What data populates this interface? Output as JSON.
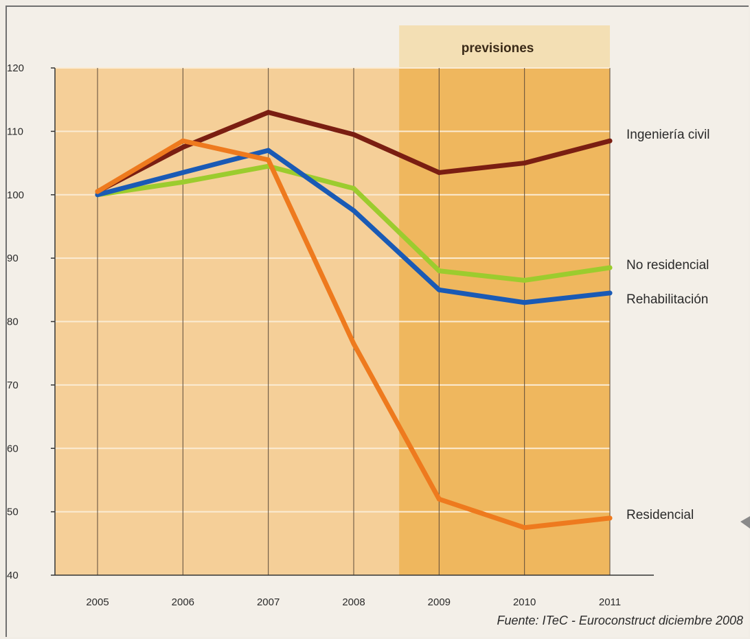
{
  "chart_data": {
    "type": "line",
    "x": [
      "2005",
      "2006",
      "2007",
      "2008",
      "2009",
      "2010",
      "2011"
    ],
    "ylim": [
      40,
      120
    ],
    "yticks": [
      40,
      50,
      60,
      70,
      80,
      90,
      100,
      110,
      120
    ],
    "forecast_label": "previsiones",
    "forecast_from": "2009",
    "source": "Fuente: ITeC - Euroconstruct diciembre 2008",
    "grid": true,
    "series": [
      {
        "name": "Ingeniería civil",
        "color": "#7a1e12",
        "values": [
          100.5,
          107.5,
          113,
          109.5,
          103.5,
          105,
          108.5
        ]
      },
      {
        "name": "No residencial",
        "color": "#9ccc2e",
        "values": [
          100,
          102,
          104.5,
          101,
          88,
          86.5,
          88.5
        ]
      },
      {
        "name": "Rehabilitación",
        "color": "#1a5ab5",
        "values": [
          100,
          103.5,
          107,
          97.5,
          85,
          83,
          84.5
        ]
      },
      {
        "name": "Residencial",
        "color": "#ee7a1e",
        "values": [
          100.5,
          108.5,
          105.5,
          76.5,
          52,
          47.5,
          49
        ]
      }
    ]
  }
}
